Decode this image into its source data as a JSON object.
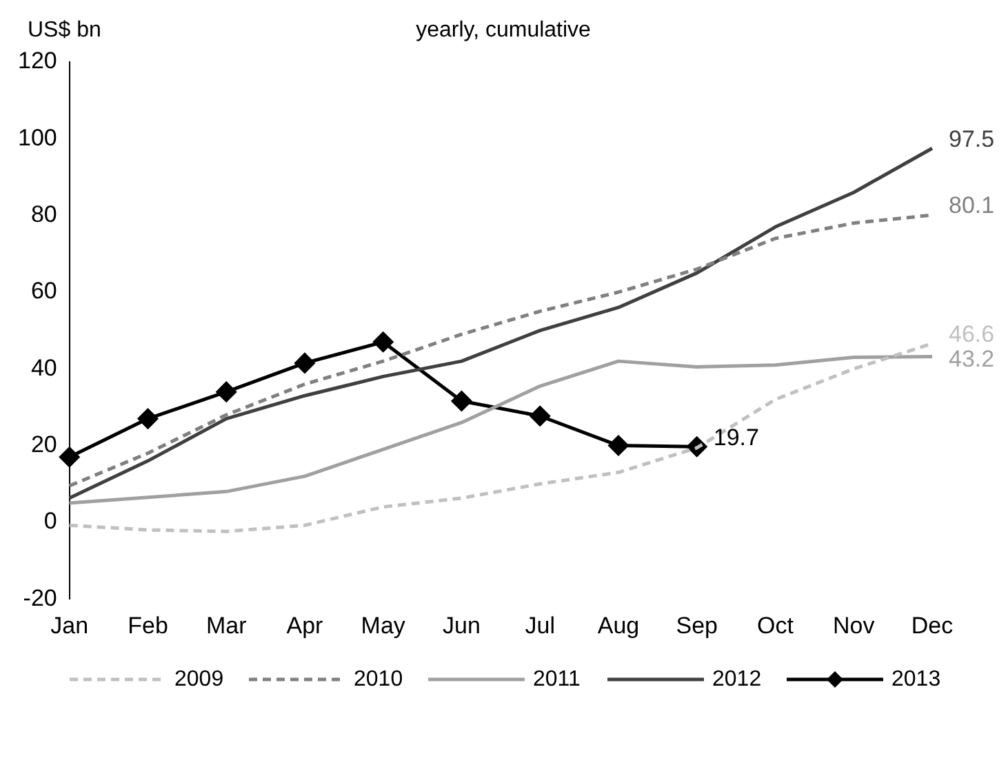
{
  "chart_data": {
    "type": "line",
    "title": "yearly, cumulative",
    "ylabel": "US$ bn",
    "categories": [
      "Jan",
      "Feb",
      "Mar",
      "Apr",
      "May",
      "Jun",
      "Jul",
      "Aug",
      "Sep",
      "Oct",
      "Nov",
      "Dec"
    ],
    "series": [
      {
        "name": "2009",
        "color": "#c0c0c0",
        "line_style": "dashed",
        "marker": "none",
        "values": [
          -0.8,
          -2,
          -2.4,
          -0.8,
          4,
          6.3,
          10,
          13,
          19.4,
          32,
          40,
          46.6
        ],
        "value_labels": [
          null,
          null,
          null,
          null,
          null,
          null,
          null,
          null,
          null,
          null,
          null,
          "46.6"
        ]
      },
      {
        "name": "2010",
        "color": "#808080",
        "line_style": "dashed",
        "marker": "none",
        "values": [
          9.5,
          18,
          28,
          36,
          42,
          49,
          55,
          60,
          66,
          74,
          78,
          80.1
        ],
        "value_labels": [
          null,
          null,
          null,
          null,
          null,
          null,
          null,
          null,
          null,
          null,
          null,
          "80.1"
        ]
      },
      {
        "name": "2011",
        "color": "#a0a0a0",
        "line_style": "solid",
        "marker": "none",
        "values": [
          5,
          6.5,
          8,
          12,
          19,
          26,
          35.5,
          42,
          40.5,
          41,
          43,
          43.2
        ],
        "value_labels": [
          null,
          null,
          null,
          null,
          null,
          null,
          null,
          null,
          null,
          null,
          null,
          "43.2"
        ]
      },
      {
        "name": "2012",
        "color": "#404040",
        "line_style": "solid",
        "marker": "none",
        "values": [
          6.3,
          16,
          27,
          33,
          38,
          42,
          50,
          56,
          65,
          77,
          86,
          97.5
        ],
        "value_labels": [
          null,
          null,
          null,
          null,
          null,
          null,
          null,
          null,
          null,
          null,
          null,
          "97.5"
        ]
      },
      {
        "name": "2013",
        "color": "#000000",
        "line_style": "solid",
        "marker": "diamond",
        "values": [
          17,
          27,
          34,
          41.5,
          47,
          31.6,
          27.7,
          20,
          19.7,
          null,
          null,
          null
        ],
        "value_labels": [
          null,
          null,
          null,
          null,
          null,
          null,
          null,
          null,
          "19.7",
          null,
          null,
          null
        ]
      }
    ],
    "ylim": [
      -20,
      120
    ],
    "yticks": [
      -20,
      0,
      20,
      40,
      60,
      80,
      100,
      120
    ],
    "grid": false,
    "legend": "bottom"
  }
}
